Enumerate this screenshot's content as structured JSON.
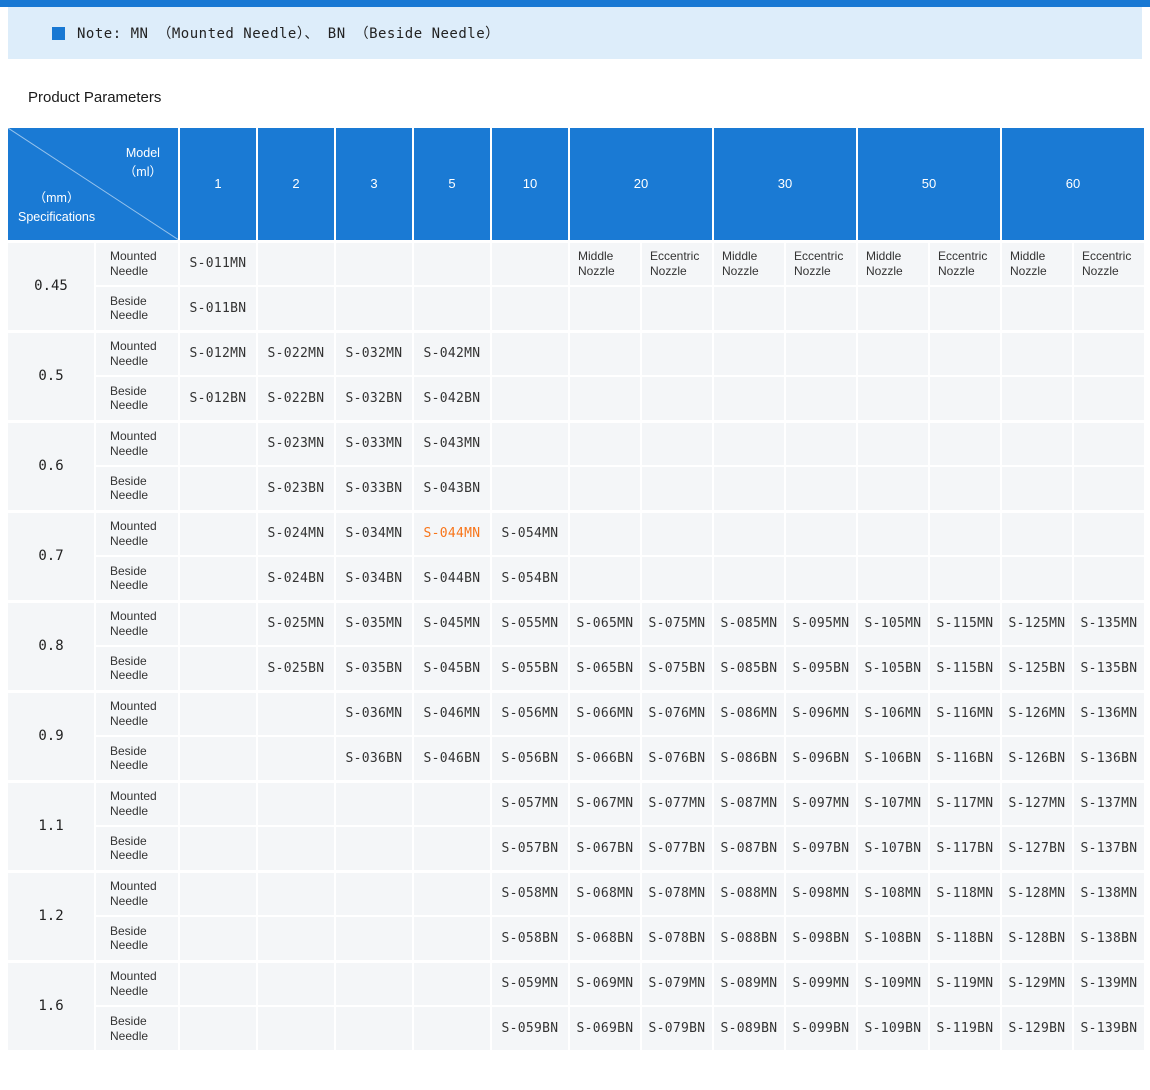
{
  "colors": {
    "accent_blue": "#1a7ad4",
    "top_bar_blue": "#1878d3",
    "note_bg": "#ddedfa",
    "body_cell_bg": "#f4f6f8",
    "highlight_orange": "#f8751a",
    "header_text": "#ffffff",
    "body_text": "#333333"
  },
  "note": {
    "bullet_icon": "square-bullet-icon",
    "text": "Note: MN （Mounted Needle）、 BN （Beside Needle）"
  },
  "section_title": "Product Parameters",
  "table": {
    "corner": {
      "model_line1": "Model",
      "model_line2": "（ml）",
      "spec_line1": "（mm）",
      "spec_line2": "Specifications"
    },
    "columns": [
      {
        "label": "1",
        "double": false
      },
      {
        "label": "2",
        "double": false
      },
      {
        "label": "3",
        "double": false
      },
      {
        "label": "5",
        "double": false
      },
      {
        "label": "10",
        "double": false
      },
      {
        "label": "20",
        "double": true
      },
      {
        "label": "30",
        "double": true
      },
      {
        "label": "50",
        "double": true
      },
      {
        "label": "60",
        "double": true
      }
    ],
    "subheaders": {
      "middle": "Middle Nozzle",
      "eccentric": "Eccentric Nozzle"
    },
    "row_labels": {
      "mounted": "Mounted Needle",
      "beside": "Beside Needle"
    },
    "highlight": {
      "group": 3,
      "row": "mounted",
      "col": 3
    },
    "groups": [
      {
        "spec": "0.45",
        "mounted": [
          "S-011MN",
          "",
          "",
          "",
          "",
          "",
          "",
          "",
          "",
          "",
          "",
          "",
          ""
        ],
        "beside": [
          "S-011BN",
          "",
          "",
          "",
          "",
          "",
          "",
          "",
          "",
          "",
          "",
          "",
          ""
        ]
      },
      {
        "spec": "0.5",
        "mounted": [
          "S-012MN",
          "S-022MN",
          "S-032MN",
          "S-042MN",
          "",
          "",
          "",
          "",
          "",
          "",
          "",
          "",
          ""
        ],
        "beside": [
          "S-012BN",
          "S-022BN",
          "S-032BN",
          "S-042BN",
          "",
          "",
          "",
          "",
          "",
          "",
          "",
          "",
          ""
        ]
      },
      {
        "spec": "0.6",
        "mounted": [
          "",
          "S-023MN",
          "S-033MN",
          "S-043MN",
          "",
          "",
          "",
          "",
          "",
          "",
          "",
          "",
          ""
        ],
        "beside": [
          "",
          "S-023BN",
          "S-033BN",
          "S-043BN",
          "",
          "",
          "",
          "",
          "",
          "",
          "",
          "",
          ""
        ]
      },
      {
        "spec": "0.7",
        "mounted": [
          "",
          "S-024MN",
          "S-034MN",
          "S-044MN",
          "S-054MN",
          "",
          "",
          "",
          "",
          "",
          "",
          "",
          ""
        ],
        "beside": [
          "",
          "S-024BN",
          "S-034BN",
          "S-044BN",
          "S-054BN",
          "",
          "",
          "",
          "",
          "",
          "",
          "",
          ""
        ]
      },
      {
        "spec": "0.8",
        "mounted": [
          "",
          "S-025MN",
          "S-035MN",
          "S-045MN",
          "S-055MN",
          "S-065MN",
          "S-075MN",
          "S-085MN",
          "S-095MN",
          "S-105MN",
          "S-115MN",
          "S-125MN",
          "S-135MN"
        ],
        "beside": [
          "",
          "S-025BN",
          "S-035BN",
          "S-045BN",
          "S-055BN",
          "S-065BN",
          "S-075BN",
          "S-085BN",
          "S-095BN",
          "S-105BN",
          "S-115BN",
          "S-125BN",
          "S-135BN"
        ]
      },
      {
        "spec": "0.9",
        "mounted": [
          "",
          "",
          "S-036MN",
          "S-046MN",
          "S-056MN",
          "S-066MN",
          "S-076MN",
          "S-086MN",
          "S-096MN",
          "S-106MN",
          "S-116MN",
          "S-126MN",
          "S-136MN"
        ],
        "beside": [
          "",
          "",
          "S-036BN",
          "S-046BN",
          "S-056BN",
          "S-066BN",
          "S-076BN",
          "S-086BN",
          "S-096BN",
          "S-106BN",
          "S-116BN",
          "S-126BN",
          "S-136BN"
        ]
      },
      {
        "spec": "1.1",
        "mounted": [
          "",
          "",
          "",
          "",
          "S-057MN",
          "S-067MN",
          "S-077MN",
          "S-087MN",
          "S-097MN",
          "S-107MN",
          "S-117MN",
          "S-127MN",
          "S-137MN"
        ],
        "beside": [
          "",
          "",
          "",
          "",
          "S-057BN",
          "S-067BN",
          "S-077BN",
          "S-087BN",
          "S-097BN",
          "S-107BN",
          "S-117BN",
          "S-127BN",
          "S-137BN"
        ]
      },
      {
        "spec": "1.2",
        "mounted": [
          "",
          "",
          "",
          "",
          "S-058MN",
          "S-068MN",
          "S-078MN",
          "S-088MN",
          "S-098MN",
          "S-108MN",
          "S-118MN",
          "S-128MN",
          "S-138MN"
        ],
        "beside": [
          "",
          "",
          "",
          "",
          "S-058BN",
          "S-068BN",
          "S-078BN",
          "S-088BN",
          "S-098BN",
          "S-108BN",
          "S-118BN",
          "S-128BN",
          "S-138BN"
        ]
      },
      {
        "spec": "1.6",
        "mounted": [
          "",
          "",
          "",
          "",
          "S-059MN",
          "S-069MN",
          "S-079MN",
          "S-089MN",
          "S-099MN",
          "S-109MN",
          "S-119MN",
          "S-129MN",
          "S-139MN"
        ],
        "beside": [
          "",
          "",
          "",
          "",
          "S-059BN",
          "S-069BN",
          "S-079BN",
          "S-089BN",
          "S-099BN",
          "S-109BN",
          "S-119BN",
          "S-129BN",
          "S-139BN"
        ]
      }
    ]
  }
}
